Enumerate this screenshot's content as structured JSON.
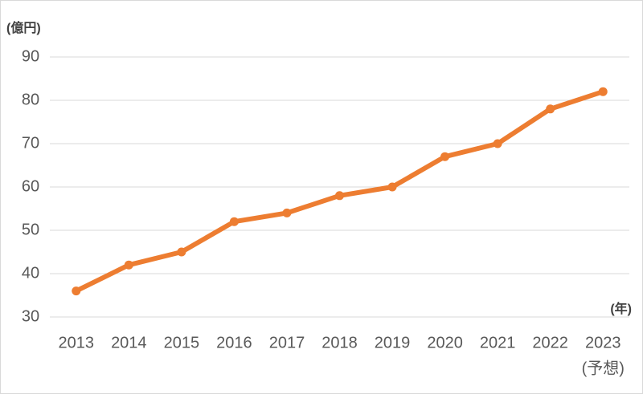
{
  "chart_data": {
    "type": "line",
    "y_label": "(億円)",
    "x_label": "(年)",
    "annotations": [
      "(予想)"
    ],
    "categories": [
      "2013",
      "2014",
      "2015",
      "2016",
      "2017",
      "2018",
      "2019",
      "2020",
      "2021",
      "2022",
      "2023"
    ],
    "series": [
      {
        "name": null,
        "color": "#ed7d31",
        "values": [
          36,
          42,
          45,
          52,
          54,
          58,
          60,
          67,
          70,
          78,
          82
        ]
      }
    ],
    "ylim": [
      30,
      90
    ],
    "yticks": [
      30,
      40,
      50,
      60,
      70,
      80,
      90
    ],
    "grid": true
  }
}
